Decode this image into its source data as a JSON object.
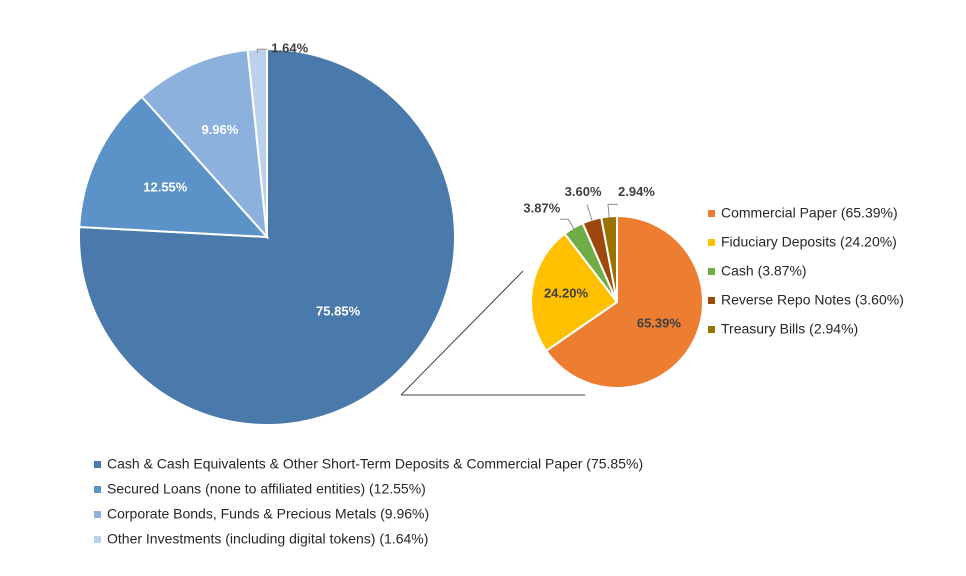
{
  "chart_data": [
    {
      "type": "pie",
      "categories": [
        "Cash & Cash Equivalents & Other Short-Term Deposits & Commercial Paper",
        "Secured Loans (none to affiliated entities)",
        "Corporate Bonds, Funds & Precious Metals",
        "Other Investments (including digital tokens)"
      ],
      "values": [
        75.85,
        12.55,
        9.96,
        1.64
      ],
      "labels": [
        "75.85%",
        "12.55%",
        "9.96%",
        "1.64%"
      ],
      "legend": [
        "Cash & Cash Equivalents & Other Short-Term Deposits & Commercial Paper (75.85%)",
        "Secured Loans (none to affiliated entities) (12.55%)",
        "Corporate Bonds, Funds & Precious Metals (9.96%)",
        "Other Investments (including digital tokens) (1.64%)"
      ],
      "colors": [
        "#4a7aab",
        "#5b93c9",
        "#8db1dd",
        "#bcd1ec"
      ],
      "label_colors": [
        "#ffffff",
        "#ffffff",
        "#ffffff",
        "#404040"
      ],
      "legend_position": "bottom"
    },
    {
      "type": "pie",
      "categories": [
        "Commercial Paper",
        "Fiduciary Deposits",
        "Cash",
        "Reverse Repo Notes",
        "Treasury Bills"
      ],
      "values": [
        65.39,
        24.2,
        3.87,
        3.6,
        2.94
      ],
      "labels": [
        "65.39%",
        "24.20%",
        "3.87%",
        "3.60%",
        "2.94%"
      ],
      "legend": [
        "Commercial Paper (65.39%)",
        "Fiduciary Deposits (24.20%)",
        "Cash (3.87%)",
        "Reverse Repo Notes (3.60%)",
        "Treasury Bills (2.94%)"
      ],
      "colors": [
        "#ed7d31",
        "#ffc000",
        "#70ad47",
        "#9e480e",
        "#997300"
      ],
      "label_colors": [
        "#404040",
        "#404040",
        "#404040",
        "#404040",
        "#404040"
      ],
      "legend_position": "right",
      "breakdown_of": "Cash & Cash Equivalents & Other Short-Term Deposits & Commercial Paper"
    }
  ]
}
